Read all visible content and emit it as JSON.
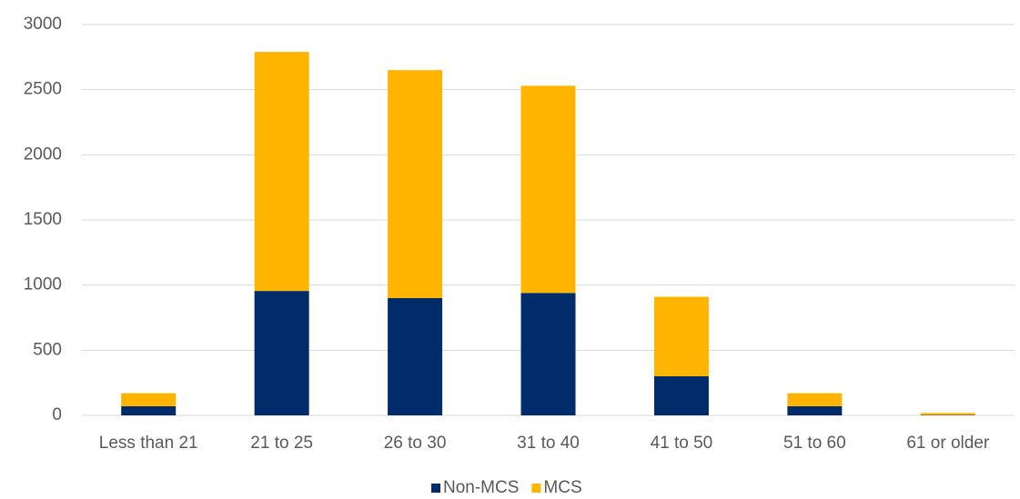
{
  "chart_data": {
    "type": "stacked_bar",
    "categories": [
      "Less than 21",
      "21 to 25",
      "26 to 30",
      "31 to 40",
      "41 to 50",
      "51 to 60",
      "61 or older"
    ],
    "series": [
      {
        "name": "Non-MCS",
        "color": "#002d6a",
        "values": [
          70,
          955,
          900,
          940,
          300,
          70,
          3
        ]
      },
      {
        "name": "MCS",
        "color": "#ffb400",
        "values": [
          100,
          1835,
          1750,
          1590,
          610,
          100,
          15
        ]
      }
    ],
    "ylim": [
      0,
      3000
    ],
    "yticks": [
      0,
      500,
      1000,
      1500,
      2000,
      2500,
      3000
    ],
    "grid": true,
    "legend": "bottom"
  }
}
